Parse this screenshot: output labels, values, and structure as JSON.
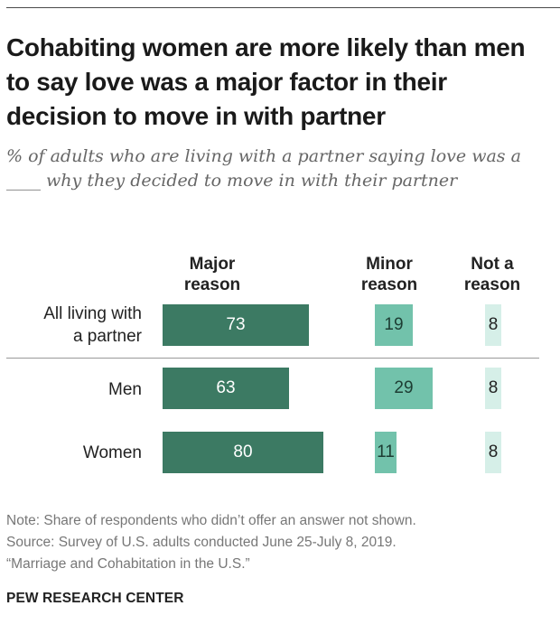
{
  "title": "Cohabiting women are more likely than men to say love was a major factor in their decision to move in with partner",
  "subtitle": "% of adults who are living with a partner saying love was a ____ why they decided to move in with their partner",
  "columns": {
    "major": [
      "Major",
      "reason"
    ],
    "minor": [
      "Minor",
      "reason"
    ],
    "none": [
      "Not a",
      "reason"
    ]
  },
  "colors": {
    "major": "#3c7a63",
    "minor": "#72c2ab",
    "none": "#d6efe8"
  },
  "chart_data": {
    "type": "bar",
    "stacking": "side-by-side columns",
    "categories": [
      "All living with a partner",
      "Men",
      "Women"
    ],
    "series": [
      {
        "name": "Major reason",
        "values": [
          73,
          63,
          80
        ]
      },
      {
        "name": "Minor reason",
        "values": [
          19,
          29,
          11
        ]
      },
      {
        "name": "Not a reason",
        "values": [
          8,
          8,
          8
        ]
      }
    ],
    "data_labels": true
  },
  "rows": [
    {
      "label_lines": [
        "All living with",
        "a partner"
      ],
      "major": "73",
      "minor": "19",
      "none": "8"
    },
    {
      "label_lines": [
        "Men"
      ],
      "major": "63",
      "minor": "29",
      "none": "8"
    },
    {
      "label_lines": [
        "Women"
      ],
      "major": "80",
      "minor": "11",
      "none": "8"
    }
  ],
  "footer": {
    "note": "Note: Share of respondents who didn’t offer an answer not shown.",
    "source": "Source: Survey of U.S. adults conducted June 25-July 8, 2019.",
    "report": "“Marriage and Cohabitation in the U.S.”",
    "org": "PEW RESEARCH CENTER"
  }
}
